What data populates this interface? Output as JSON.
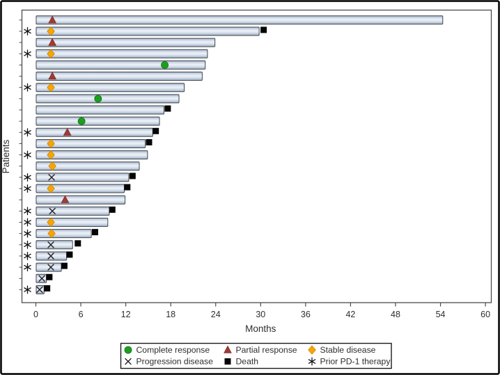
{
  "figure": {
    "kind": "swimmer-plot",
    "xlabel": "Months",
    "ylabel": "Patients"
  },
  "chart_data": {
    "type": "bar",
    "subtype": "swimmer",
    "orientation": "horizontal",
    "title": "",
    "xlabel": "Months",
    "ylabel": "Patients",
    "xticks": [
      0,
      6,
      12,
      18,
      24,
      30,
      36,
      42,
      48,
      54,
      60
    ],
    "xlim": [
      -1.9,
      60.8
    ],
    "grid": false,
    "bar_fill": "#c9d4e4",
    "bar_border": "#3f454e",
    "frame_color": "#4a4a4a",
    "markers": {
      "complete_response": {
        "label": "Complete response",
        "shape": "circle",
        "color": "#1ba01e",
        "edge": "#0c6e10"
      },
      "partial_response": {
        "label": "Partial response",
        "shape": "triangle",
        "color": "#a23a35",
        "edge": "#7e2a26"
      },
      "stable_disease": {
        "label": "Stable disease",
        "shape": "diamond",
        "color": "#f7a600",
        "edge": "#cf8500"
      },
      "progression_disease": {
        "label": "Progression disease",
        "shape": "x",
        "color": "#222222",
        "edge": "#222222"
      },
      "death": {
        "label": "Death",
        "shape": "square",
        "color": "#050505",
        "edge": "#050505"
      },
      "prior_pd1": {
        "label": "Prior PD-1 therapy",
        "shape": "asterisk",
        "color": "#111111",
        "edge": "#111111"
      }
    },
    "legend_order": [
      [
        "complete_response",
        "partial_response",
        "stable_disease"
      ],
      [
        "progression_disease",
        "death",
        "prior_pd1"
      ]
    ],
    "legend_position": "bottom-center",
    "patients": [
      {
        "prior_pd1": false,
        "response": "partial_response",
        "response_month": 2.2,
        "bar_end": 54.3,
        "death_month": null
      },
      {
        "prior_pd1": true,
        "response": "stable_disease",
        "response_month": 2.0,
        "bar_end": 29.8,
        "death_month": 30.4
      },
      {
        "prior_pd1": false,
        "response": "partial_response",
        "response_month": 2.2,
        "bar_end": 23.9,
        "death_month": null
      },
      {
        "prior_pd1": true,
        "response": "stable_disease",
        "response_month": 2.0,
        "bar_end": 22.9,
        "death_month": null
      },
      {
        "prior_pd1": false,
        "response": "complete_response",
        "response_month": 17.2,
        "bar_end": 22.6,
        "death_month": null
      },
      {
        "prior_pd1": false,
        "response": "partial_response",
        "response_month": 2.2,
        "bar_end": 22.2,
        "death_month": null
      },
      {
        "prior_pd1": true,
        "response": "stable_disease",
        "response_month": 2.0,
        "bar_end": 19.8,
        "death_month": null
      },
      {
        "prior_pd1": false,
        "response": "complete_response",
        "response_month": 8.3,
        "bar_end": 19.1,
        "death_month": null
      },
      {
        "prior_pd1": false,
        "response": null,
        "response_month": null,
        "bar_end": 17.1,
        "death_month": 17.6
      },
      {
        "prior_pd1": false,
        "response": "complete_response",
        "response_month": 6.1,
        "bar_end": 16.5,
        "death_month": null
      },
      {
        "prior_pd1": true,
        "response": "partial_response",
        "response_month": 4.2,
        "bar_end": 15.6,
        "death_month": 16.0
      },
      {
        "prior_pd1": false,
        "response": "stable_disease",
        "response_month": 2.0,
        "bar_end": 14.6,
        "death_month": 15.1
      },
      {
        "prior_pd1": true,
        "response": "stable_disease",
        "response_month": 2.0,
        "bar_end": 14.9,
        "death_month": null
      },
      {
        "prior_pd1": false,
        "response": "stable_disease",
        "response_month": 2.2,
        "bar_end": 13.8,
        "death_month": null
      },
      {
        "prior_pd1": true,
        "response": "progression_disease",
        "response_month": 2.1,
        "bar_end": 12.4,
        "death_month": 12.9
      },
      {
        "prior_pd1": true,
        "response": "stable_disease",
        "response_month": 2.0,
        "bar_end": 11.8,
        "death_month": 12.2
      },
      {
        "prior_pd1": false,
        "response": "partial_response",
        "response_month": 3.9,
        "bar_end": 11.9,
        "death_month": null
      },
      {
        "prior_pd1": true,
        "response": "progression_disease",
        "response_month": 2.2,
        "bar_end": 9.8,
        "death_month": 10.2
      },
      {
        "prior_pd1": true,
        "response": "stable_disease",
        "response_month": 2.0,
        "bar_end": 9.6,
        "death_month": null
      },
      {
        "prior_pd1": true,
        "response": "stable_disease",
        "response_month": 2.1,
        "bar_end": 7.4,
        "death_month": 7.9
      },
      {
        "prior_pd1": true,
        "response": "progression_disease",
        "response_month": 2.0,
        "bar_end": 4.9,
        "death_month": 5.6
      },
      {
        "prior_pd1": true,
        "response": "progression_disease",
        "response_month": 2.0,
        "bar_end": 4.1,
        "death_month": 4.5
      },
      {
        "prior_pd1": true,
        "response": "progression_disease",
        "response_month": 2.0,
        "bar_end": 3.4,
        "death_month": 3.8
      },
      {
        "prior_pd1": false,
        "response": "progression_disease",
        "response_month": 0.8,
        "bar_end": 1.4,
        "death_month": 1.8
      },
      {
        "prior_pd1": true,
        "response": "progression_disease",
        "response_month": 0.5,
        "bar_end": 1.1,
        "death_month": 1.5
      }
    ]
  }
}
